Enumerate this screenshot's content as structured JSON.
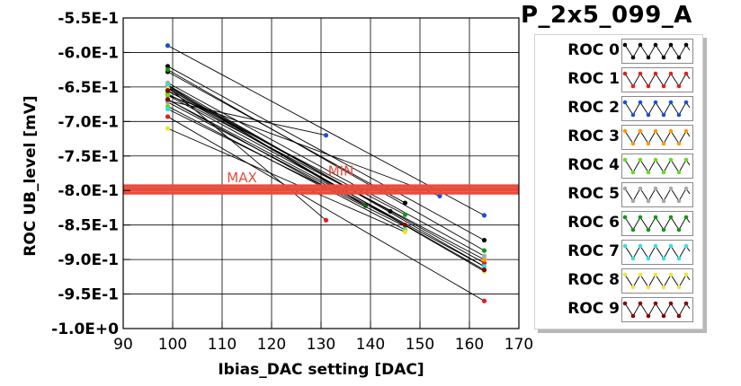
{
  "chart_data": {
    "type": "line",
    "title": "P_2x5_099_A",
    "xlabel": "Ibias_DAC setting [DAC]",
    "ylabel": "ROC UB_level [mV]",
    "xlim": [
      90,
      170
    ],
    "ylim": [
      -1.0,
      -0.55
    ],
    "xticks": [
      "90",
      "100",
      "110",
      "120",
      "130",
      "140",
      "150",
      "160",
      "170"
    ],
    "yticks": [
      "-5.5E-1",
      "-6.0E-1",
      "-6.5E-1",
      "-7.0E-1",
      "-7.5E-1",
      "-8.0E-1",
      "-8.5E-1",
      "-9.0E-1",
      "-9.5E-1",
      "-1.0E+0"
    ],
    "grid": true,
    "legend_position": "right",
    "reference_lines": [
      {
        "y": -0.793,
        "color": "#e84c3d"
      },
      {
        "y": -0.797,
        "color": "#e84c3d"
      },
      {
        "y": -0.8,
        "color": "#e84c3d"
      },
      {
        "y": -0.804,
        "color": "#e84c3d"
      }
    ],
    "annotations": [
      {
        "text": "MIN",
        "x": 134,
        "y": -0.778,
        "color": "#e84c3d"
      },
      {
        "text": "MAX",
        "x": 114,
        "y": -0.788,
        "color": "#e84c3d"
      }
    ],
    "series": [
      {
        "name": "ROC 0",
        "color": "#000000",
        "lines": [
          [
            99,
            -0.62,
            163,
            -0.872
          ],
          [
            99,
            -0.628,
            147,
            -0.818
          ],
          [
            99,
            -0.65,
            144,
            -0.83
          ]
        ]
      },
      {
        "name": "ROC 1",
        "color": "#e02020",
        "lines": [
          [
            99,
            -0.693,
            163,
            -0.96
          ],
          [
            99,
            -0.65,
            131,
            -0.843
          ],
          [
            99,
            -0.652,
            163,
            -0.905
          ]
        ]
      },
      {
        "name": "ROC 2",
        "color": "#1e4fd0",
        "lines": [
          [
            99,
            -0.59,
            163,
            -0.836
          ],
          [
            99,
            -0.662,
            154,
            -0.808
          ],
          [
            99,
            -0.67,
            131,
            -0.72
          ]
        ]
      },
      {
        "name": "ROC 3",
        "color": "#ff9900",
        "lines": [
          [
            99,
            -0.66,
            163,
            -0.9
          ],
          [
            99,
            -0.668,
            133,
            -0.803
          ]
        ]
      },
      {
        "name": "ROC 4",
        "color": "#66dd22",
        "lines": [
          [
            99,
            -0.662,
            163,
            -0.91
          ],
          [
            99,
            -0.678,
            147,
            -0.857
          ]
        ]
      },
      {
        "name": "ROC 5",
        "color": "#a8a8a8",
        "lines": [
          [
            99,
            -0.644,
            163,
            -0.895
          ],
          [
            99,
            -0.672,
            139,
            -0.822
          ]
        ]
      },
      {
        "name": "ROC 6",
        "color": "#119911",
        "lines": [
          [
            99,
            -0.625,
            163,
            -0.887
          ],
          [
            99,
            -0.656,
            147,
            -0.835
          ],
          [
            99,
            -0.648,
            139,
            -0.822
          ]
        ]
      },
      {
        "name": "ROC 7",
        "color": "#33e0e0",
        "lines": [
          [
            99,
            -0.647,
            163,
            -0.91
          ],
          [
            99,
            -0.682,
            147,
            -0.852
          ]
        ]
      },
      {
        "name": "ROC 8",
        "color": "#e8e833",
        "lines": [
          [
            99,
            -0.652,
            163,
            -0.917
          ],
          [
            99,
            -0.71,
            147,
            -0.86
          ]
        ]
      },
      {
        "name": "ROC 9",
        "color": "#880000",
        "lines": [
          [
            99,
            -0.655,
            163,
            -0.915
          ],
          [
            99,
            -0.668,
            147,
            -0.85
          ]
        ]
      }
    ]
  }
}
